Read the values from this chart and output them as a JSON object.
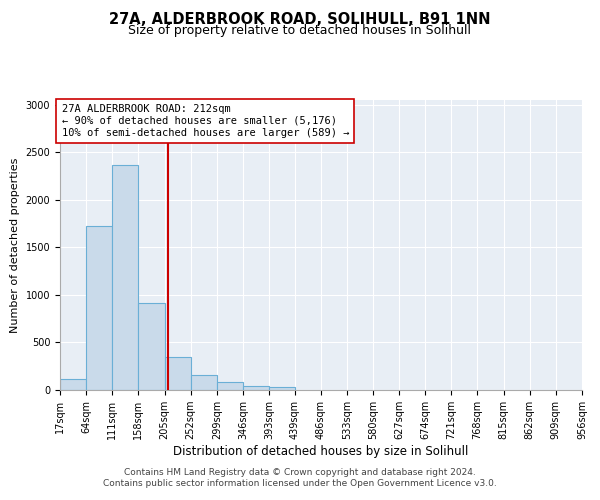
{
  "title": "27A, ALDERBROOK ROAD, SOLIHULL, B91 1NN",
  "subtitle": "Size of property relative to detached houses in Solihull",
  "xlabel": "Distribution of detached houses by size in Solihull",
  "ylabel": "Number of detached properties",
  "bin_edges": [
    17,
    64,
    111,
    158,
    205,
    252,
    299,
    346,
    393,
    439,
    486,
    533,
    580,
    627,
    674,
    721,
    768,
    815,
    862,
    909,
    956
  ],
  "bar_heights": [
    120,
    1720,
    2370,
    910,
    350,
    155,
    82,
    42,
    30,
    0,
    0,
    0,
    0,
    0,
    0,
    0,
    0,
    0,
    0,
    0
  ],
  "bar_color": "#c9daea",
  "bar_edge_color": "#6aafd6",
  "property_value": 212,
  "vline_color": "#cc0000",
  "annotation_box_edge_color": "#cc0000",
  "annotation_line1": "27A ALDERBROOK ROAD: 212sqm",
  "annotation_line2": "← 90% of detached houses are smaller (5,176)",
  "annotation_line3": "10% of semi-detached houses are larger (589) →",
  "ylim": [
    0,
    3050
  ],
  "yticks": [
    0,
    500,
    1000,
    1500,
    2000,
    2500,
    3000
  ],
  "tick_labels": [
    "17sqm",
    "64sqm",
    "111sqm",
    "158sqm",
    "205sqm",
    "252sqm",
    "299sqm",
    "346sqm",
    "393sqm",
    "439sqm",
    "486sqm",
    "533sqm",
    "580sqm",
    "627sqm",
    "674sqm",
    "721sqm",
    "768sqm",
    "815sqm",
    "862sqm",
    "909sqm",
    "956sqm"
  ],
  "footer_line1": "Contains HM Land Registry data © Crown copyright and database right 2024.",
  "footer_line2": "Contains public sector information licensed under the Open Government Licence v3.0.",
  "background_color": "#ffffff",
  "plot_background_color": "#e8eef5",
  "title_fontsize": 10.5,
  "subtitle_fontsize": 9,
  "xlabel_fontsize": 8.5,
  "ylabel_fontsize": 8,
  "tick_fontsize": 7,
  "annotation_fontsize": 7.5,
  "footer_fontsize": 6.5
}
